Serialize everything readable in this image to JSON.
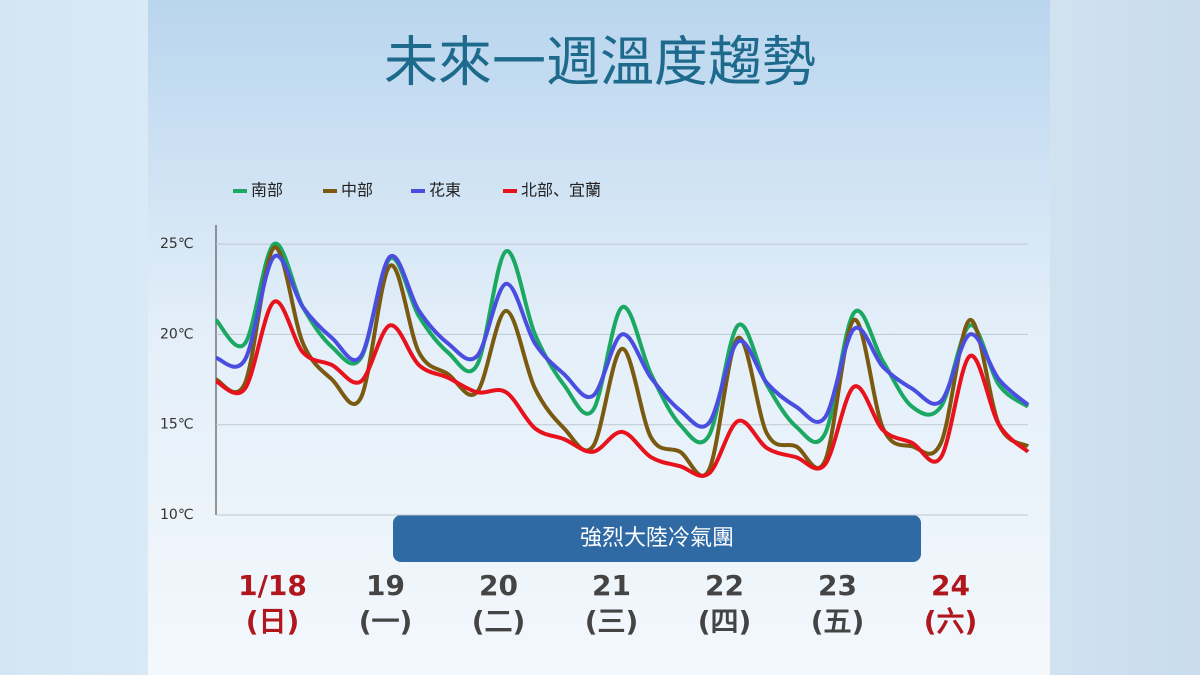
{
  "chart_data": {
    "type": "line",
    "title": "未來一週溫度趨勢",
    "days": [
      {
        "date": "1/18",
        "weekday": "(日)",
        "color": "#b0161c"
      },
      {
        "date": "19",
        "weekday": "(一)",
        "color": "#444444"
      },
      {
        "date": "20",
        "weekday": "(二)",
        "color": "#444444"
      },
      {
        "date": "21",
        "weekday": "(三)",
        "color": "#444444"
      },
      {
        "date": "22",
        "weekday": "(四)",
        "color": "#444444"
      },
      {
        "date": "23",
        "weekday": "(五)",
        "color": "#444444"
      },
      {
        "date": "24",
        "weekday": "(六)",
        "color": "#b0161c"
      }
    ],
    "annotation": "強烈大陸冷氣團",
    "ylim": [
      10,
      26
    ],
    "yticks": [
      {
        "value": 10,
        "label": "10℃"
      },
      {
        "value": 15,
        "label": "15℃"
      },
      {
        "value": 20,
        "label": "20℃"
      },
      {
        "value": 25,
        "label": "25℃"
      }
    ],
    "grid": true,
    "series": [
      {
        "name": "南部",
        "color": "#1aa862",
        "values": [
          20.8,
          19.5,
          25.0,
          21.5,
          19.3,
          18.7,
          24.2,
          21.0,
          19.0,
          18.3,
          24.6,
          20.0,
          17.2,
          15.8,
          21.5,
          17.8,
          15.0,
          14.4,
          20.5,
          17.2,
          14.9,
          14.5,
          21.2,
          18.5,
          16.0,
          16.0,
          20.5,
          17.2,
          16.0
        ]
      },
      {
        "name": "中部",
        "color": "#7a5a10",
        "values": [
          17.5,
          17.3,
          24.8,
          19.5,
          17.5,
          16.5,
          23.8,
          19.0,
          17.8,
          16.8,
          21.3,
          17.0,
          14.8,
          13.8,
          19.2,
          14.3,
          13.5,
          12.5,
          19.8,
          14.5,
          13.8,
          13.0,
          20.8,
          14.8,
          13.8,
          14.0,
          20.8,
          15.0,
          13.8
        ]
      },
      {
        "name": "花東",
        "color": "#4a4ee0",
        "values": [
          18.7,
          18.6,
          24.3,
          21.5,
          19.8,
          18.8,
          24.3,
          21.3,
          19.5,
          18.8,
          22.8,
          19.5,
          17.8,
          16.6,
          20.0,
          17.6,
          15.8,
          15.1,
          19.6,
          17.3,
          16.0,
          15.4,
          20.3,
          18.2,
          17.0,
          16.3,
          20.0,
          17.5,
          16.1
        ]
      },
      {
        "name": "北部、宜蘭",
        "color": "#e8121c",
        "values": [
          17.4,
          17.0,
          21.8,
          19.0,
          18.3,
          17.4,
          20.5,
          18.3,
          17.6,
          16.8,
          16.8,
          14.8,
          14.2,
          13.5,
          14.6,
          13.2,
          12.7,
          12.3,
          15.2,
          13.7,
          13.2,
          12.8,
          17.1,
          14.7,
          14.0,
          13.2,
          18.8,
          15.0,
          13.5
        ]
      }
    ]
  }
}
